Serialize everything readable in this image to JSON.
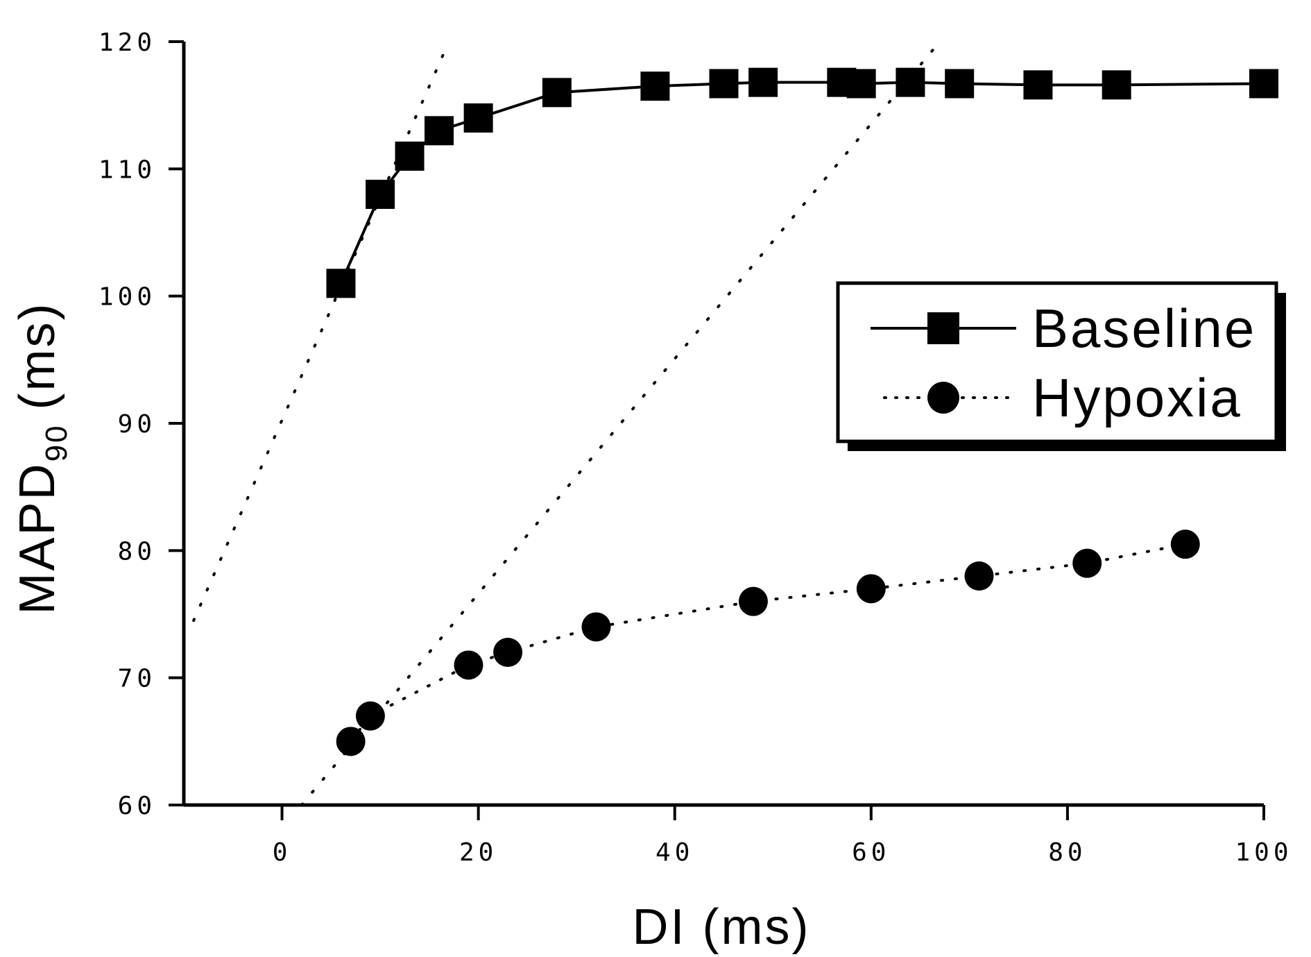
{
  "chart_data": {
    "type": "line",
    "xlabel": "DI (ms)",
    "ylabel_main": "MAPD",
    "ylabel_sub": "90",
    "ylabel_unit": "(ms)",
    "xlim": [
      -10,
      100
    ],
    "ylim": [
      60,
      120
    ],
    "x_ticks": [
      0,
      20,
      40,
      60,
      80,
      100
    ],
    "y_ticks": [
      60,
      70,
      80,
      90,
      100,
      110,
      120
    ],
    "x_tick_labels": [
      "0",
      "20",
      "40",
      "60",
      "80",
      "100"
    ],
    "y_tick_labels": [
      "60",
      "70",
      "80",
      "90",
      "100",
      "110",
      "120"
    ],
    "grid": false,
    "legend_position": "right",
    "series": [
      {
        "name": "Baseline",
        "line_style": "solid",
        "marker": "square",
        "x": [
          6,
          10,
          13,
          16,
          20,
          28,
          38,
          45,
          49,
          57,
          59,
          64,
          69,
          77,
          85,
          100
        ],
        "y": [
          101,
          108,
          111,
          113,
          114,
          116,
          116.5,
          116.7,
          116.8,
          116.8,
          116.7,
          116.8,
          116.7,
          116.6,
          116.6,
          116.7
        ]
      },
      {
        "name": "Hypoxia",
        "line_style": "dotted",
        "marker": "circle",
        "x": [
          7,
          9,
          19,
          23,
          32,
          48,
          60,
          71,
          82,
          92
        ],
        "y": [
          65,
          67,
          71,
          72,
          74,
          76,
          77,
          78,
          79,
          80.5
        ]
      }
    ],
    "tangent_lines": [
      {
        "style": "dotted",
        "x": [
          -9,
          17
        ],
        "y": [
          74.5,
          120
        ]
      },
      {
        "style": "dotted",
        "x": [
          2,
          67
        ],
        "y": [
          60,
          120
        ]
      }
    ]
  }
}
